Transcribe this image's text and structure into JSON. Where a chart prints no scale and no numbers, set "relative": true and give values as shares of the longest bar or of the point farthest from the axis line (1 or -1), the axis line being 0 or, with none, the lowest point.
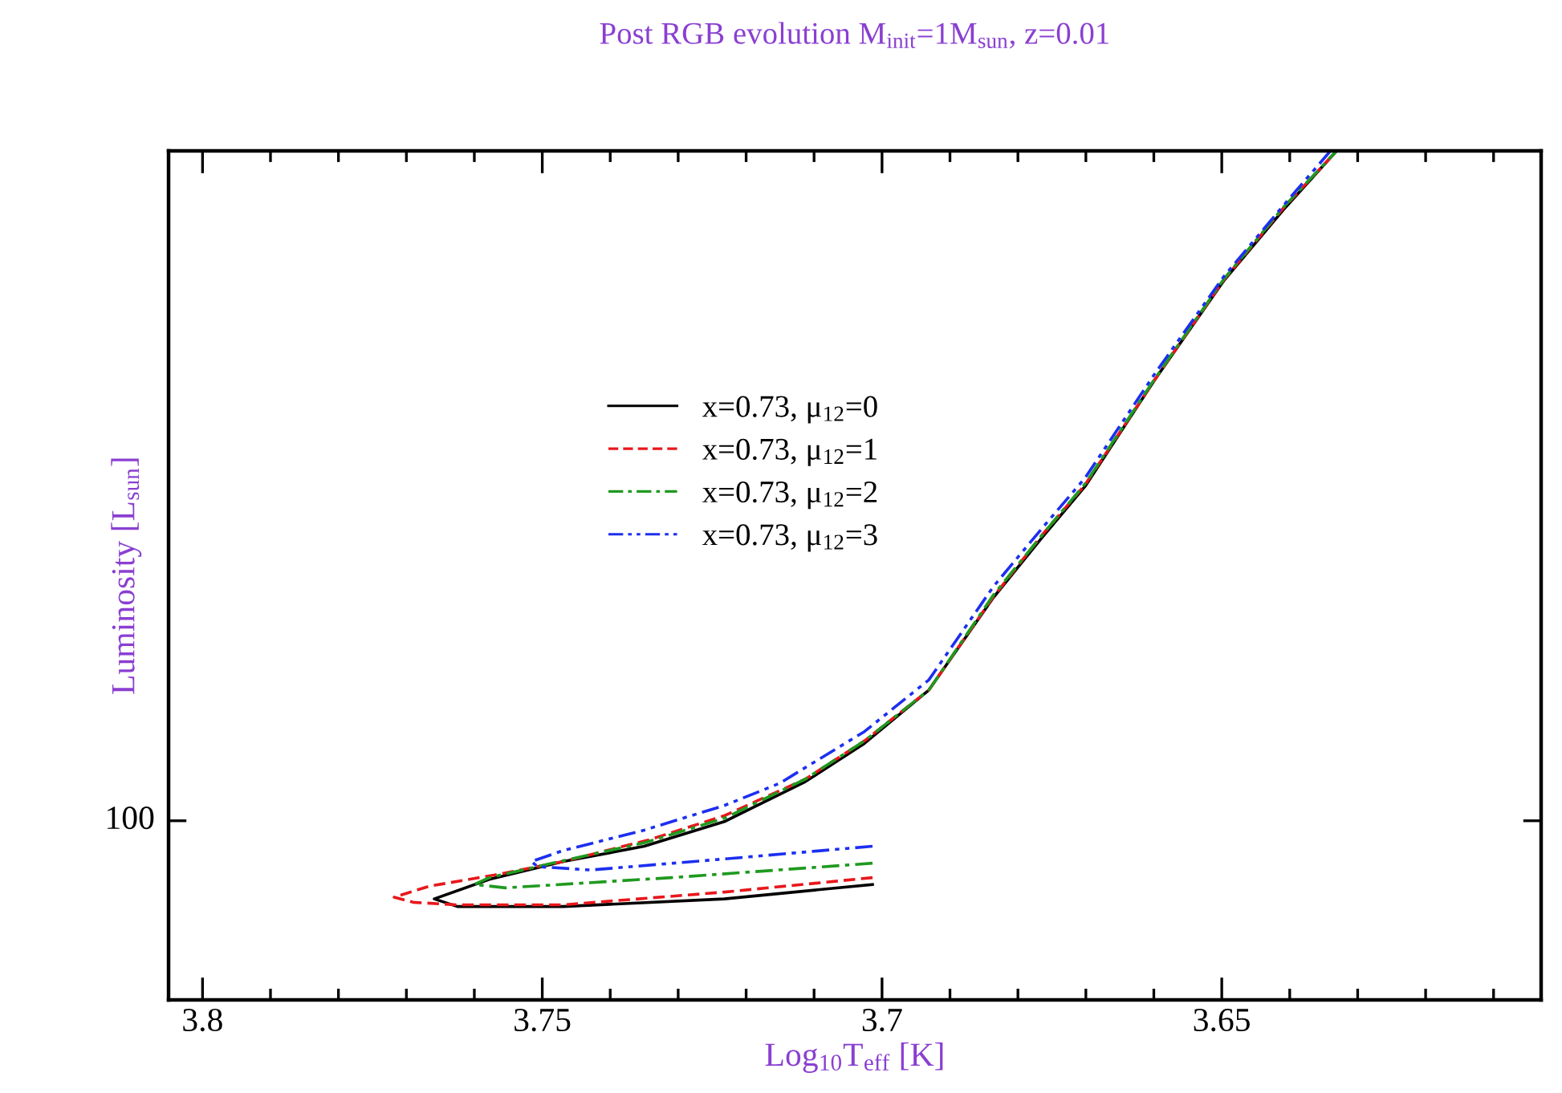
{
  "chart_data": {
    "type": "line",
    "title": "Post RGB evolution M$_{init}$=1M$_{sun}$, z=0.01",
    "xlabel": "Log$_{10}$T$_{eff}$ [K]",
    "ylabel": "Luminosity [L$_{sun}$]",
    "relative": true,
    "annotations": [
      "100"
    ],
    "xlim": [
      3.805,
      3.603
    ],
    "xticks": [
      3.8,
      {
        "value": 3.79,
        "label": null
      },
      {
        "value": 3.78,
        "label": null
      },
      {
        "value": 3.77,
        "label": null
      },
      {
        "value": 3.76,
        "label": null
      },
      3.75,
      {
        "value": 3.74,
        "label": null
      },
      {
        "value": 3.73,
        "label": null
      },
      {
        "value": 3.72,
        "label": null
      },
      {
        "value": 3.71,
        "label": null
      },
      3.7,
      {
        "value": 3.69,
        "label": null
      },
      {
        "value": 3.68,
        "label": null
      },
      {
        "value": 3.67,
        "label": null
      },
      {
        "value": 3.66,
        "label": null
      },
      3.65,
      {
        "value": 3.64,
        "label": null
      },
      {
        "value": 3.63,
        "label": null
      },
      {
        "value": 3.62,
        "label": null
      },
      {
        "value": 3.61,
        "label": null
      }
    ],
    "legend": "center left",
    "series": [
      {
        "name": "x=0.73, μ$_{12}$=0",
        "color": "#000000",
        "line_style": "solid",
        "x": [
          3.7014,
          3.7232,
          3.7469,
          3.7625,
          3.7659,
          3.7578,
          3.7469,
          3.735,
          3.7232,
          3.7113,
          3.7026,
          3.6931,
          3.6836,
          3.6765,
          3.6701,
          3.6599,
          3.6497,
          3.641,
          3.6331
        ],
        "values": [
          0.136,
          0.119,
          0.11,
          0.11,
          0.119,
          0.142,
          0.163,
          0.181,
          0.21,
          0.257,
          0.302,
          0.365,
          0.474,
          0.544,
          0.605,
          0.73,
          0.847,
          0.93,
          1.0
        ]
      },
      {
        "name": "x=0.73, μ$_{12}$=1",
        "color": "#e8171b",
        "line_style": "dashed",
        "x": [
          3.7014,
          3.7232,
          3.7469,
          3.7625,
          3.769,
          3.7718,
          3.7666,
          3.7571,
          3.7469,
          3.7341,
          3.7232,
          3.7113,
          3.7026,
          3.6931,
          3.6836,
          3.6765,
          3.6701,
          3.6599,
          3.6497,
          3.641,
          3.6331
        ],
        "values": [
          0.144,
          0.127,
          0.112,
          0.112,
          0.115,
          0.121,
          0.134,
          0.147,
          0.163,
          0.189,
          0.217,
          0.26,
          0.305,
          0.365,
          0.475,
          0.547,
          0.607,
          0.73,
          0.848,
          0.932,
          1.0
        ]
      },
      {
        "name": "x=0.73, μ$_{12}$=2",
        "color": "#1f9a1f",
        "line_style": "dashdot",
        "x": [
          3.7014,
          3.731,
          3.7554,
          3.76,
          3.7578,
          3.7469,
          3.735,
          3.7232,
          3.7113,
          3.7026,
          3.6931,
          3.6836,
          3.6765,
          3.6701,
          3.6599,
          3.6497,
          3.641,
          3.6331
        ],
        "values": [
          0.161,
          0.144,
          0.132,
          0.136,
          0.144,
          0.164,
          0.185,
          0.214,
          0.26,
          0.305,
          0.365,
          0.477,
          0.547,
          0.608,
          0.731,
          0.849,
          0.933,
          1.0
        ]
      },
      {
        "name": "x=0.73, μ$_{12}$=3",
        "color": "#1c2ff0",
        "line_style": "dashdotdot",
        "x": [
          3.7014,
          3.7232,
          3.7429,
          3.7507,
          3.7516,
          3.7469,
          3.735,
          3.7232,
          3.7151,
          3.7026,
          3.6931,
          3.6836,
          3.6765,
          3.6701,
          3.6599,
          3.6497,
          3.641,
          3.634
        ],
        "values": [
          0.181,
          0.166,
          0.153,
          0.157,
          0.163,
          0.176,
          0.2,
          0.229,
          0.255,
          0.316,
          0.377,
          0.487,
          0.555,
          0.615,
          0.737,
          0.852,
          0.935,
          1.0
        ]
      }
    ]
  }
}
